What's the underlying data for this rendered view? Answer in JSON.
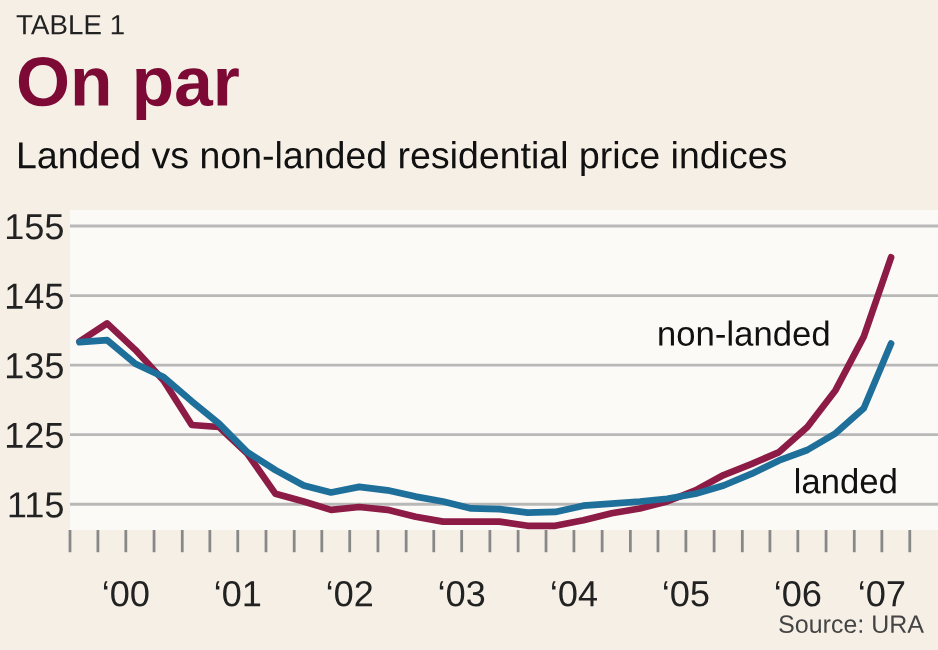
{
  "chart_data": {
    "type": "line",
    "title": "On par",
    "subtitle": "Landed vs non-landed residential price indices",
    "x": [
      "2000-02-01",
      "2000-05-01",
      "2000-08-01",
      "2000-11-01",
      "2001-02-01",
      "2001-05-01",
      "2001-08-01",
      "2001-11-01",
      "2002-02-01",
      "2002-05-01",
      "2002-08-01",
      "2002-11-01",
      "2003-02-01",
      "2003-05-01",
      "2003-08-01",
      "2003-11-01",
      "2004-02-01",
      "2004-05-01",
      "2004-08-01",
      "2004-11-01",
      "2005-02-01",
      "2005-05-01",
      "2005-08-01",
      "2005-11-01",
      "2006-02-01",
      "2006-05-01",
      "2006-08-01",
      "2006-11-01",
      "2007-02-01",
      "2007-05-01"
    ],
    "series": [
      {
        "name": "non-landed",
        "color": "#8c1b45",
        "values": [
          138.4,
          141,
          137.2,
          132.8,
          126.4,
          126.1,
          122.3,
          116.5,
          115.4,
          114.2,
          114.6,
          114.2,
          113.2,
          112.5,
          112.5,
          112.5,
          111.9,
          111.9,
          112.7,
          113.7,
          114.4,
          115.4,
          117,
          119.2,
          120.8,
          122.5,
          126.1,
          131.4,
          139.1,
          150.5
        ]
      },
      {
        "name": "landed",
        "color": "#1f6f9b",
        "values": [
          138.3,
          138.6,
          135.2,
          133.3,
          129.8,
          126.6,
          122.5,
          119.9,
          117.7,
          116.7,
          117.5,
          117,
          116.1,
          115.4,
          114.4,
          114.3,
          113.8,
          113.9,
          114.8,
          115.1,
          115.4,
          115.8,
          116.5,
          117.7,
          119.4,
          121.3,
          122.8,
          125.2,
          128.8,
          138.1
        ]
      }
    ],
    "xlim": [
      "2000-01-01",
      "2007-10-01"
    ],
    "ylim": [
      111.3,
      157.3
    ],
    "xticks": [
      {
        "value": "2000-01-01",
        "label": null
      },
      {
        "value": "2000-04-01",
        "label": null
      },
      {
        "value": "2000-07-01",
        "label": "‘00"
      },
      {
        "value": "2000-10-01",
        "label": null
      },
      {
        "value": "2001-01-01",
        "label": null
      },
      {
        "value": "2001-04-01",
        "label": null
      },
      {
        "value": "2001-07-01",
        "label": "‘01"
      },
      {
        "value": "2001-10-01",
        "label": null
      },
      {
        "value": "2002-01-01",
        "label": null
      },
      {
        "value": "2002-04-01",
        "label": null
      },
      {
        "value": "2002-07-01",
        "label": "‘02"
      },
      {
        "value": "2002-10-01",
        "label": null
      },
      {
        "value": "2003-01-01",
        "label": null
      },
      {
        "value": "2003-04-01",
        "label": null
      },
      {
        "value": "2003-07-01",
        "label": "‘03"
      },
      {
        "value": "2003-10-01",
        "label": null
      },
      {
        "value": "2004-01-01",
        "label": null
      },
      {
        "value": "2004-04-01",
        "label": null
      },
      {
        "value": "2004-07-01",
        "label": "‘04"
      },
      {
        "value": "2004-10-01",
        "label": null
      },
      {
        "value": "2005-01-01",
        "label": null
      },
      {
        "value": "2005-04-01",
        "label": null
      },
      {
        "value": "2005-07-01",
        "label": "‘05"
      },
      {
        "value": "2005-10-01",
        "label": null
      },
      {
        "value": "2006-01-01",
        "label": null
      },
      {
        "value": "2006-04-01",
        "label": null
      },
      {
        "value": "2006-07-01",
        "label": "‘06"
      },
      {
        "value": "2006-10-01",
        "label": null
      },
      {
        "value": "2007-01-01",
        "label": null
      },
      {
        "value": "2007-04-01",
        "label": "‘07"
      },
      {
        "value": "2007-07-01",
        "label": null
      }
    ],
    "yticks": [
      115,
      125,
      135,
      145,
      155
    ],
    "grid": "y",
    "annotations": [
      "TABLE 1",
      "Source: URA"
    ]
  }
}
